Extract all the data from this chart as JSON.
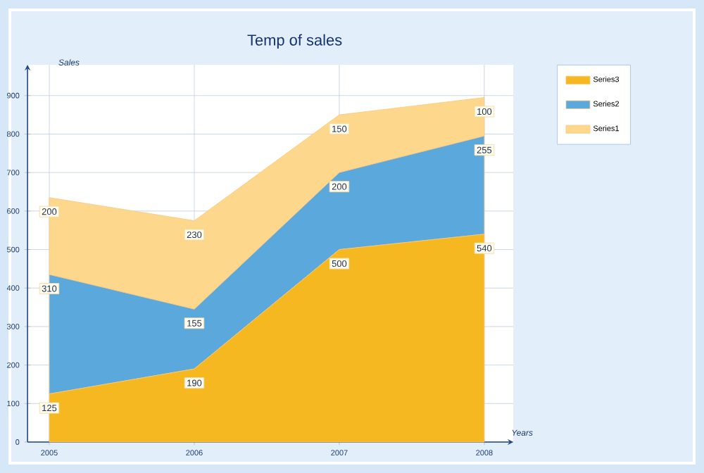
{
  "chart_data": {
    "type": "area",
    "title": "Temp of sales",
    "xlabel": "Years",
    "ylabel": "Sales",
    "categories": [
      "2005",
      "2006",
      "2007",
      "2008"
    ],
    "stacked": true,
    "series": [
      {
        "name": "Series3",
        "color": "#f5b820",
        "values": [
          125,
          190,
          500,
          540
        ]
      },
      {
        "name": "Series2",
        "color": "#5aa8dc",
        "values": [
          310,
          155,
          200,
          255
        ]
      },
      {
        "name": "Series1",
        "color": "#fdd88c",
        "values": [
          200,
          230,
          150,
          100
        ]
      }
    ],
    "ylim": [
      0,
      980
    ],
    "yticks": [
      0,
      100,
      200,
      300,
      400,
      500,
      600,
      700,
      800,
      900
    ],
    "grid": true,
    "legend": "top right",
    "data_labels": true
  }
}
